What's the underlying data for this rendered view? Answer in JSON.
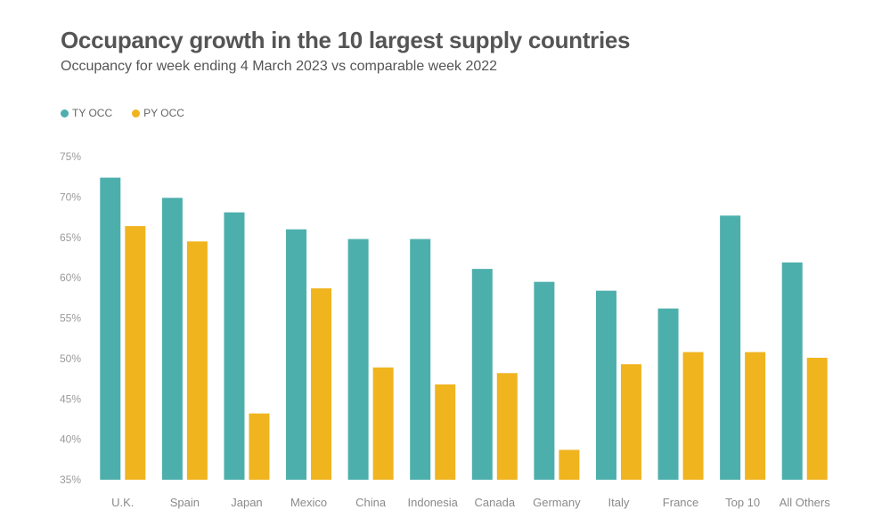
{
  "chart_data": {
    "type": "bar",
    "title": "Occupancy growth in the 10 largest supply countries",
    "subtitle": "Occupancy for week ending 4 March 2023 vs comparable week 2022",
    "categories": [
      "U.K.",
      "Spain",
      "Japan",
      "Mexico",
      "China",
      "Indonesia",
      "Canada",
      "Germany",
      "Italy",
      "France",
      "Top 10",
      "All Others"
    ],
    "series": [
      {
        "name": "TY OCC",
        "color": "#4dafac",
        "values": [
          72.4,
          69.9,
          68.1,
          66.0,
          64.8,
          64.8,
          61.1,
          59.5,
          58.4,
          56.2,
          67.7,
          61.9
        ]
      },
      {
        "name": "PY OCC",
        "color": "#f0b41f",
        "values": [
          66.4,
          64.5,
          43.2,
          58.7,
          48.9,
          46.8,
          48.2,
          38.7,
          49.3,
          50.8,
          50.8,
          50.1
        ]
      }
    ],
    "ylim": [
      35,
      75
    ],
    "yticks": [
      "35%",
      "40%",
      "45%",
      "50%",
      "55%",
      "60%",
      "65%",
      "70%",
      "75%"
    ],
    "xlabel": "",
    "ylabel": "",
    "grid": false,
    "legend_position": "top-left"
  }
}
